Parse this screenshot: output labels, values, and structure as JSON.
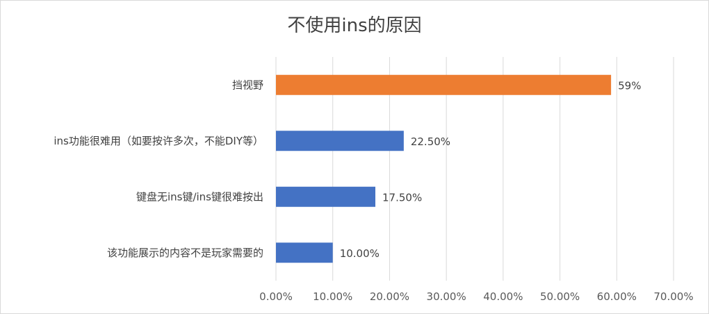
{
  "chart_data": {
    "type": "bar",
    "orientation": "horizontal",
    "title": "不使用ins的原因",
    "categories": [
      "挡视野",
      "ins功能很难用（如要按许多次，不能DIY等）",
      "键盘无ins键/ins键很难按出",
      "该功能展示的内容不是玩家需要的"
    ],
    "values": [
      59,
      22.5,
      17.5,
      10
    ],
    "data_labels": [
      "59%",
      "22.50%",
      "17.50%",
      "10.00%"
    ],
    "bar_colors": [
      "#ED7D31",
      "#4472C4",
      "#4472C4",
      "#4472C4"
    ],
    "xlim": [
      0,
      70
    ],
    "x_ticks": [
      0,
      10,
      20,
      30,
      40,
      50,
      60,
      70
    ],
    "x_tick_labels": [
      "0.00%",
      "10.00%",
      "20.00%",
      "30.00%",
      "40.00%",
      "50.00%",
      "60.00%",
      "70.00%"
    ],
    "grid": true,
    "legend": "none",
    "xlabel": "",
    "ylabel": ""
  }
}
